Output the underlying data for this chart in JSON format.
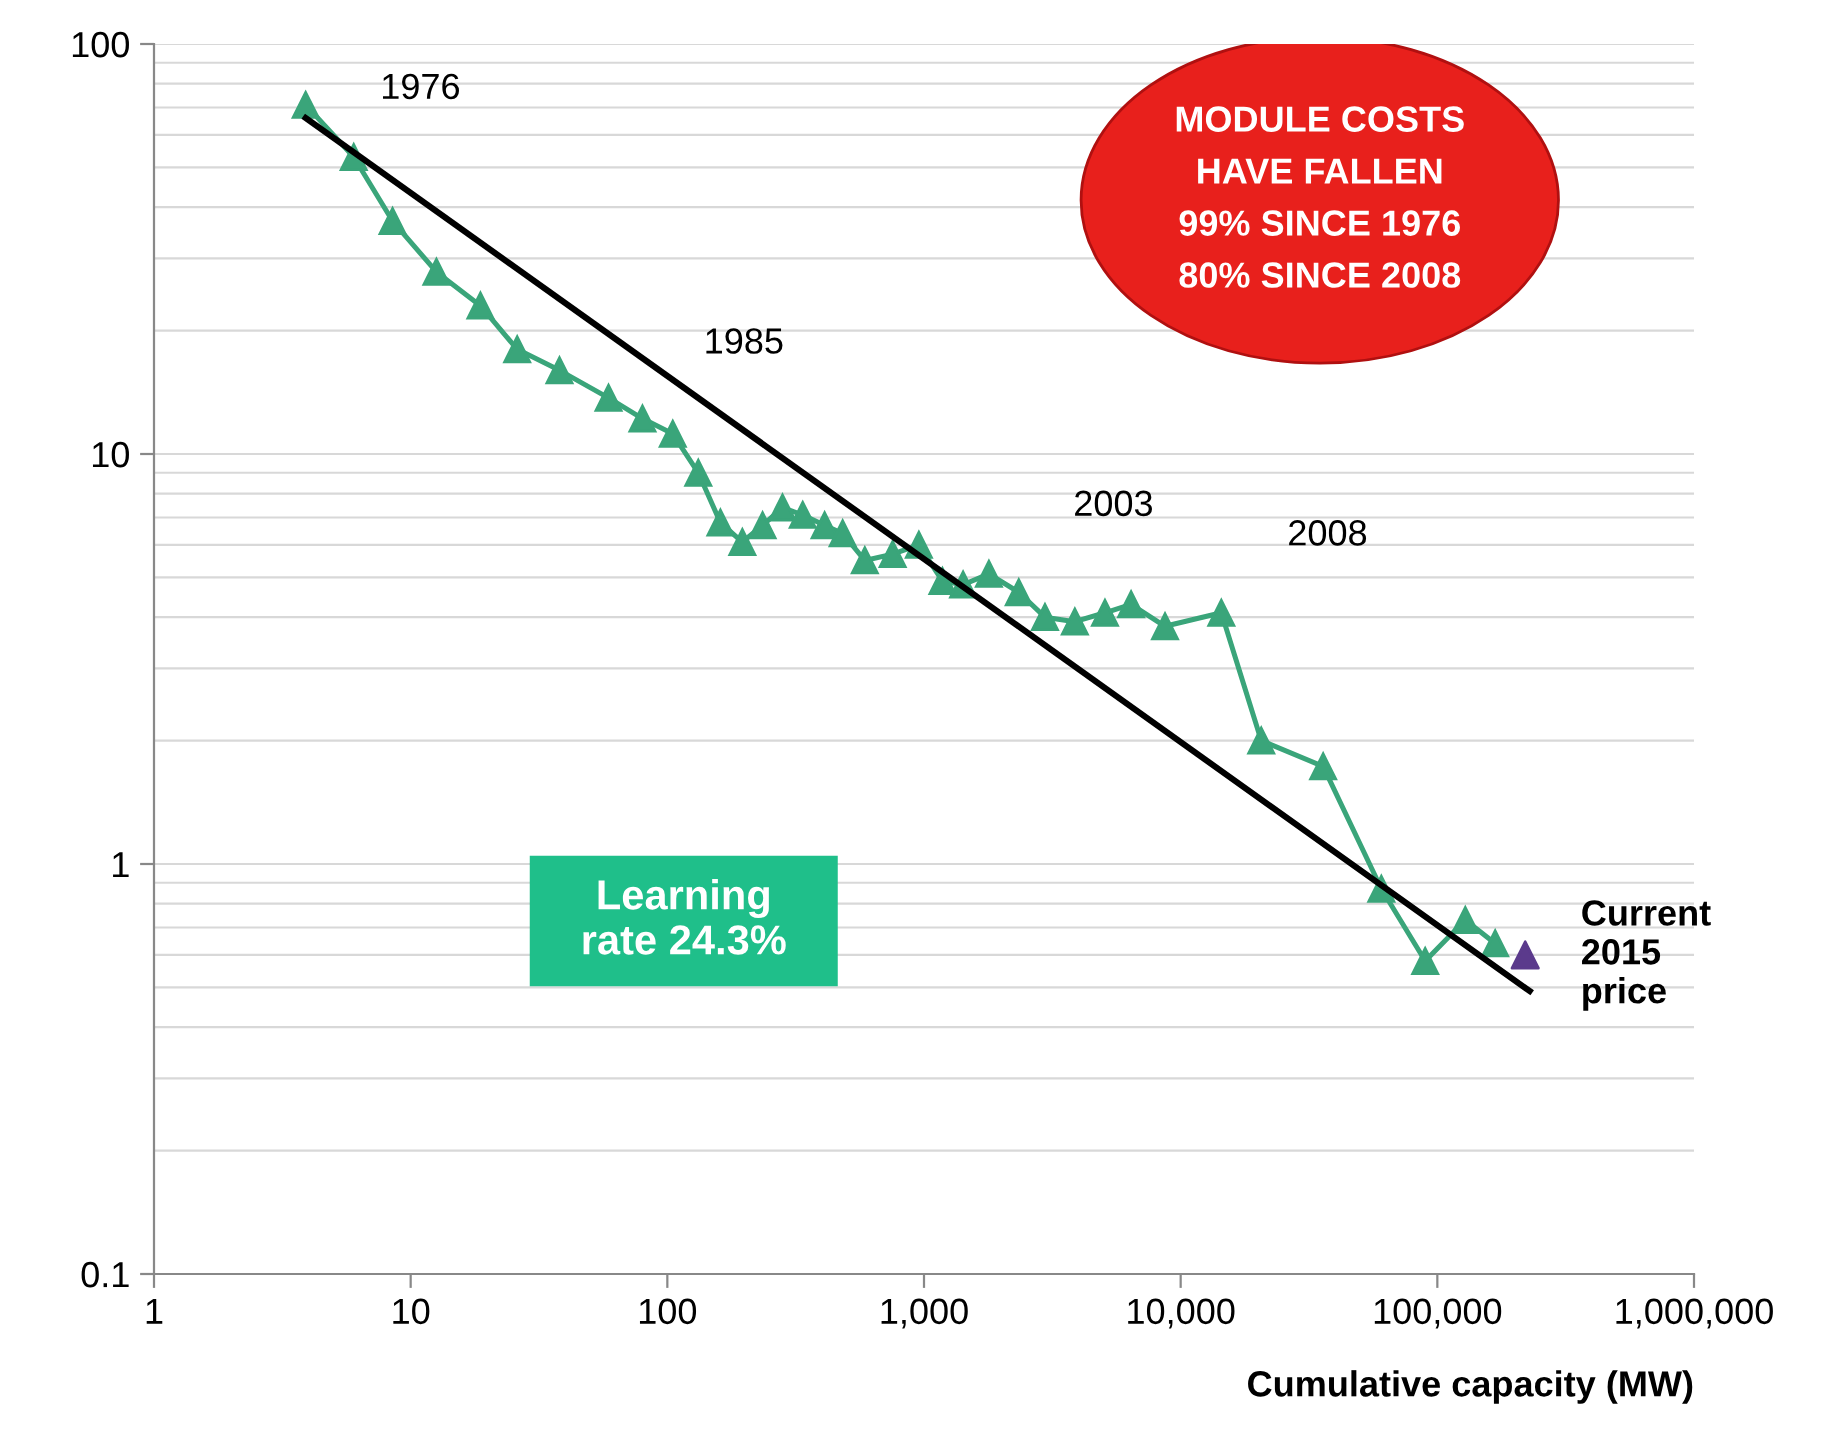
{
  "chart_data": {
    "type": "line",
    "xlabel": "Cumulative capacity (MW)",
    "log": "xy",
    "marker": "triangle",
    "grid": "y",
    "legend": false,
    "xlim": [
      1,
      1000000
    ],
    "ylim": [
      0.1,
      100
    ],
    "xticks": [
      1,
      10,
      100,
      {
        "value": 1000,
        "label": "1,000"
      },
      {
        "value": 10000,
        "label": "10,000"
      },
      {
        "value": 100000,
        "label": "100,000"
      },
      {
        "value": 1000000,
        "label": "1,000,000"
      }
    ],
    "yticks": [
      0.1,
      1,
      10,
      100
    ],
    "series": [
      {
        "color": "#3aa57a",
        "x": [
          3.9,
          6.0,
          8.5,
          12.6,
          18.7,
          26,
          38,
          59,
          80,
          105,
          132,
          161,
          196,
          235,
          281,
          337,
          410,
          482,
          588,
          755,
          955,
          1180,
          1420,
          1790,
          2340,
          2960,
          3870,
          5070,
          6410,
          8690,
          14400,
          20600,
          35900,
          60500,
          89700,
          128500,
          168000
        ],
        "values": [
          71,
          53,
          37,
          27.8,
          23,
          18,
          16,
          13.7,
          12.2,
          11.2,
          9.0,
          6.8,
          6.1,
          6.7,
          7.4,
          7.1,
          6.7,
          6.4,
          5.5,
          5.7,
          6.0,
          4.9,
          4.8,
          5.1,
          4.6,
          4.0,
          3.9,
          4.1,
          4.3,
          3.8,
          4.1,
          2.0,
          1.73,
          0.87,
          0.58,
          0.73,
          0.64
        ]
      },
      {
        "type": "line",
        "color": "#000000",
        "marker": "none",
        "x": [
          3.9,
          229000
        ],
        "values": [
          66,
          0.49
        ]
      },
      {
        "type": "scatter",
        "color": "#5b3a8c",
        "x": [
          220000
        ],
        "values": [
          0.6
        ]
      }
    ],
    "annotations": [
      "1976",
      "1985",
      "2003",
      "2008",
      "MODULE COSTS\nHAVE FALLEN\n99% SINCE 1976\n80% SINCE 2008",
      "Learning\nrate 24.3%",
      {
        "text": "Current\n2015\nprice",
        "x": 220000,
        "y": 0.6
      }
    ]
  }
}
